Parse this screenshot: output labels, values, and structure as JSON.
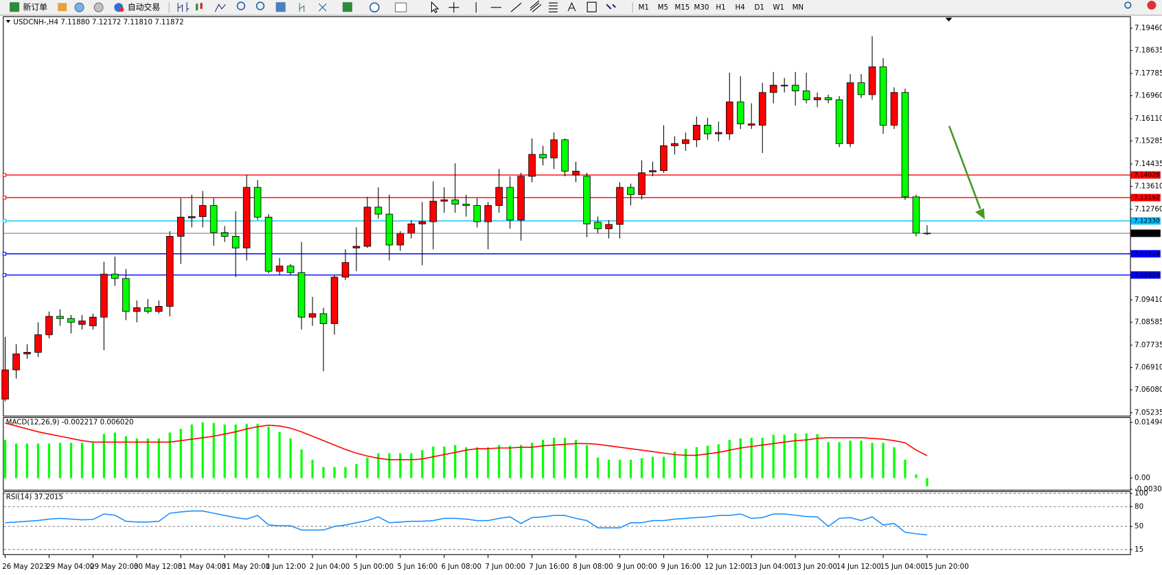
{
  "toolbar": {
    "new_order": "新订单",
    "auto_trading": "自动交易",
    "timeframes": [
      "M1",
      "M5",
      "M15",
      "M30",
      "H1",
      "H4",
      "D1",
      "W1",
      "MN"
    ]
  },
  "chart_data": [
    {
      "type": "candlestick",
      "title": "USDCNH-,H4 7.11880 7.12172 7.11810 7.11872",
      "categories": [
        "26 May 2023",
        null,
        null,
        null,
        "29 May 04:00",
        null,
        null,
        null,
        "29 May 20:00",
        null,
        null,
        null,
        "30 May 12:00",
        null,
        null,
        null,
        "31 May 04:00",
        null,
        null,
        null,
        "31 May 20:00",
        null,
        null,
        null,
        "1 Jun 12:00",
        null,
        null,
        null,
        "2 Jun 04:00",
        null,
        null,
        null,
        "5 Jun 00:00",
        null,
        null,
        null,
        "5 Jun 16:00",
        null,
        null,
        null,
        "6 Jun 08:00",
        null,
        null,
        null,
        "7 Jun 00:00",
        null,
        null,
        null,
        "7 Jun 16:00",
        null,
        null,
        null,
        "8 Jun 08:00",
        null,
        null,
        null,
        "9 Jun 00:00",
        null,
        null,
        null,
        "9 Jun 16:00",
        null,
        null,
        null,
        "12 Jun 12:00",
        null,
        null,
        null,
        "13 Jun 04:00",
        null,
        null,
        null,
        "13 Jun 20:00",
        null,
        null,
        null,
        "14 Jun 12:00",
        null,
        null,
        null,
        "15 Jun 04:00",
        null,
        null,
        null,
        "15 Jun 20:00"
      ],
      "open": [
        7.0574,
        7.0682,
        7.0741,
        7.0747,
        7.0812,
        7.088,
        7.0872,
        7.085,
        7.0845,
        7.0877,
        7.1036,
        7.102,
        7.0898,
        7.0912,
        7.0898,
        7.0917,
        7.1176,
        7.1244,
        7.1249,
        7.129,
        7.119,
        7.1176,
        7.1133,
        7.1357,
        7.1247,
        7.1047,
        7.1066,
        7.1042,
        7.0877,
        7.089,
        7.0853,
        7.1025,
        7.1133,
        7.1139,
        7.1284,
        7.1258,
        7.1144,
        7.1187,
        7.1222,
        7.123,
        7.1306,
        7.1311,
        7.1295,
        7.129,
        7.123,
        7.129,
        7.1357,
        7.1236,
        7.1398,
        7.1479,
        7.1466,
        7.1533,
        7.1403,
        7.1398,
        7.1228,
        7.1204,
        7.122,
        7.1357,
        7.133,
        7.1414,
        7.1419,
        7.1511,
        7.1519,
        7.1533,
        7.1587,
        7.1555,
        7.1555,
        7.1673,
        7.1587,
        7.1587,
        7.1708,
        7.1733,
        7.1735,
        7.1714,
        7.1681,
        7.1689,
        7.1681,
        7.1519,
        7.1744,
        7.17,
        7.1803,
        7.1587,
        7.1708,
        7.1322,
        7.1188
      ],
      "high": [
        7.0804,
        7.0777,
        7.0777,
        7.0858,
        7.0898,
        7.0906,
        7.0885,
        7.0885,
        7.089,
        7.1082,
        7.1101,
        7.1055,
        7.0939,
        7.0944,
        7.0939,
        7.1195,
        7.1317,
        7.133,
        7.1344,
        7.1317,
        7.1214,
        7.1268,
        7.1403,
        7.1384,
        7.1258,
        7.1096,
        7.1074,
        7.1155,
        7.0952,
        7.0912,
        7.1033,
        7.1128,
        7.1209,
        7.1322,
        7.1357,
        7.133,
        7.1195,
        7.1236,
        7.1303,
        7.1379,
        7.1357,
        7.1446,
        7.133,
        7.1317,
        7.1303,
        7.1425,
        7.1398,
        7.1411,
        7.1538,
        7.1511,
        7.156,
        7.1538,
        7.1452,
        7.1411,
        7.1249,
        7.1236,
        7.1376,
        7.1371,
        7.1457,
        7.1452,
        7.1587,
        7.1546,
        7.156,
        7.1619,
        7.1614,
        7.16,
        7.1781,
        7.1768,
        7.1668,
        7.1744,
        7.1784,
        7.1762,
        7.1784,
        7.1781,
        7.1708,
        7.17,
        7.1695,
        7.1776,
        7.1776,
        7.1916,
        7.1835,
        7.1727,
        7.1722,
        7.133,
        7.12172
      ],
      "low": [
        7.0566,
        7.065,
        7.0723,
        7.073,
        7.0799,
        7.0845,
        7.0817,
        7.0831,
        7.0831,
        7.0755,
        7.0993,
        7.0866,
        7.0858,
        7.089,
        7.089,
        7.088,
        7.1074,
        7.1209,
        7.1209,
        7.1141,
        7.1155,
        7.1025,
        7.1087,
        7.1236,
        7.1039,
        7.1033,
        7.1033,
        7.0831,
        7.0845,
        7.0677,
        7.0812,
        7.1014,
        7.1047,
        7.1133,
        7.1241,
        7.1087,
        7.1122,
        7.1168,
        7.1069,
        7.1128,
        7.1263,
        7.1263,
        7.1249,
        7.1209,
        7.1128,
        7.1263,
        7.1204,
        7.116,
        7.1376,
        7.1438,
        7.1425,
        7.1398,
        7.1376,
        7.1173,
        7.1187,
        7.1168,
        7.1168,
        7.129,
        7.1312,
        7.1398,
        7.1411,
        7.1479,
        7.1492,
        7.1506,
        7.1533,
        7.1527,
        7.1533,
        7.1573,
        7.1573,
        7.1484,
        7.1668,
        7.1708,
        7.166,
        7.1668,
        7.1654,
        7.1668,
        7.1506,
        7.1506,
        7.1687,
        7.1681,
        7.1555,
        7.1573,
        7.1311,
        7.1176,
        7.1181
      ],
      "close": [
        7.0682,
        7.0741,
        7.0747,
        7.0812,
        7.088,
        7.0872,
        7.0858,
        7.0863,
        7.0877,
        7.1036,
        7.102,
        7.0898,
        7.0912,
        7.0898,
        7.0917,
        7.1176,
        7.1247,
        7.1249,
        7.129,
        7.119,
        7.1176,
        7.1133,
        7.1357,
        7.1247,
        7.1047,
        7.1066,
        7.1042,
        7.0877,
        7.089,
        7.0853,
        7.1025,
        7.1079,
        7.1139,
        7.1284,
        7.1258,
        7.1144,
        7.1187,
        7.1222,
        7.123,
        7.1306,
        7.1311,
        7.1295,
        7.129,
        7.123,
        7.129,
        7.1357,
        7.1236,
        7.1398,
        7.1479,
        7.1466,
        7.1533,
        7.1417,
        7.1417,
        7.1222,
        7.1204,
        7.122,
        7.1357,
        7.133,
        7.1411,
        7.1419,
        7.1511,
        7.1519,
        7.1533,
        7.1587,
        7.1555,
        7.156,
        7.1673,
        7.1592,
        7.1592,
        7.1708,
        7.1735,
        7.1735,
        7.1714,
        7.1681,
        7.1689,
        7.1681,
        7.1519,
        7.1744,
        7.17,
        7.1803,
        7.1587,
        7.1708,
        7.1322,
        7.1188,
        7.11872
      ],
      "up_color": "#ff0000",
      "down_color": "#00ff00",
      "ylim": [
        7.05126,
        7.1987
      ],
      "yticks": [
        {
          "value": 7.1946,
          "label": "7.19460"
        },
        7.18635,
        7.17785,
        {
          "value": 7.1696,
          "label": "7.16960"
        },
        {
          "value": 7.1611,
          "label": "7.16110"
        },
        7.15285,
        7.14435,
        {
          "value": 7.1361,
          "label": "7.13610"
        },
        {
          "value": 7.1276,
          "label": "7.12760"
        },
        {
          "value": 7.0941,
          "label": "7.09410"
        },
        7.08585,
        7.07735,
        {
          "value": 7.0691,
          "label": "7.06910"
        },
        {
          "value": 7.0608,
          "label": "7.06080"
        },
        7.05235
      ],
      "levels": [
        {
          "value": 7.14028,
          "color": "#ff0000"
        },
        {
          "value": 7.13192,
          "color": "#ff0000"
        },
        {
          "value": 7.1233,
          "label": "7.12330",
          "color": "#00bfff"
        },
        {
          "value": 7.11114,
          "color": "#0000ff"
        },
        {
          "value": 7.10329,
          "color": "#0000ff"
        }
      ],
      "last_price_line": true
    },
    {
      "type": "macd",
      "title": "MACD(12,26,9) -0.002217 0.006020",
      "histogram": {
        "color": "#00ff00",
        "values": [
          0.01022,
          0.00924,
          0.00924,
          0.00924,
          0.00924,
          0.00944,
          0.00944,
          0.00944,
          0.00944,
          0.0118,
          0.01219,
          0.01121,
          0.01062,
          0.01062,
          0.01062,
          0.01219,
          0.01317,
          0.01435,
          0.01494,
          0.01475,
          0.01435,
          0.01435,
          0.01455,
          0.01455,
          0.01376,
          0.01239,
          0.01062,
          0.00767,
          0.00492,
          0.00295,
          0.00295,
          0.00295,
          0.00374,
          0.00551,
          0.00668,
          0.00668,
          0.00668,
          0.00668,
          0.00747,
          0.00845,
          0.00845,
          0.00885,
          0.00826,
          0.00826,
          0.00826,
          0.00885,
          0.00865,
          0.00885,
          0.00944,
          0.01022,
          0.01081,
          0.01081,
          0.01022,
          0.00885,
          0.00551,
          0.00492,
          0.00492,
          0.00492,
          0.00531,
          0.0057,
          0.0057,
          0.00708,
          0.00786,
          0.00826,
          0.00865,
          0.00904,
          0.01022,
          0.01062,
          0.01081,
          0.01081,
          0.0116,
          0.0116,
          0.01199,
          0.01199,
          0.0118,
          0.00963,
          0.00963,
          0.01003,
          0.01003,
          0.00944,
          0.00944,
          0.00826,
          0.00492,
          0.00098,
          -0.002217
        ]
      },
      "signal": {
        "color": "#ff0000",
        "values": [
          0.01475,
          0.01396,
          0.01317,
          0.01239,
          0.0118,
          0.01121,
          0.01062,
          0.01003,
          0.00963,
          0.00963,
          0.00963,
          0.00963,
          0.00963,
          0.00963,
          0.00963,
          0.00963,
          0.01003,
          0.01042,
          0.01081,
          0.01121,
          0.0118,
          0.01239,
          0.01317,
          0.01376,
          0.01416,
          0.01396,
          0.01337,
          0.01239,
          0.01121,
          0.01003,
          0.00885,
          0.00767,
          0.00668,
          0.0059,
          0.00531,
          0.00492,
          0.00492,
          0.00492,
          0.00511,
          0.0057,
          0.00629,
          0.00688,
          0.00747,
          0.00786,
          0.00786,
          0.00806,
          0.00806,
          0.00826,
          0.00826,
          0.00865,
          0.00885,
          0.00904,
          0.00924,
          0.00924,
          0.00904,
          0.00865,
          0.00826,
          0.00786,
          0.00747,
          0.00708,
          0.00668,
          0.00629,
          0.00609,
          0.00609,
          0.00649,
          0.00688,
          0.00747,
          0.00806,
          0.00845,
          0.00885,
          0.00924,
          0.00963,
          0.01003,
          0.01022,
          0.01062,
          0.01081,
          0.01081,
          0.01081,
          0.01081,
          0.01062,
          0.01042,
          0.01003,
          0.00944,
          0.0075,
          0.00602
        ]
      },
      "ylim": [
        -0.00315,
        0.01612
      ],
      "yticks": [
        0.014942,
        {
          "value": 0,
          "label": "0.00"
        },
        -0.003034
      ]
    },
    {
      "type": "line",
      "title": "RSI(14) 37.2015",
      "color": "#1e90ff",
      "values": [
        55.6,
        56.7,
        57.8,
        59,
        61.1,
        62.2,
        61.1,
        60,
        60.5,
        68.9,
        67,
        57.8,
        56.7,
        56.7,
        57.8,
        70,
        72,
        73.4,
        73.4,
        70,
        66.7,
        63.4,
        61.1,
        66.7,
        52.2,
        51.1,
        51.1,
        44.5,
        44.5,
        44.5,
        50,
        52.2,
        55.6,
        58.9,
        64.5,
        55.6,
        56.7,
        57.8,
        57.8,
        58.9,
        62.2,
        62.2,
        61.1,
        58.9,
        58.9,
        62.2,
        64.5,
        54.5,
        63.4,
        64.5,
        66.7,
        66.7,
        62.2,
        58.9,
        47.8,
        47.8,
        47.8,
        55.6,
        55.6,
        58.9,
        58.9,
        61.1,
        62.2,
        63.4,
        64.5,
        66.7,
        66.7,
        68.9,
        62.2,
        63.4,
        68.9,
        68.9,
        67,
        65,
        64.5,
        50,
        62.2,
        63.4,
        58.9,
        64.5,
        52.2,
        54.5,
        41.1,
        38.9,
        37.2015
      ],
      "ylim": [
        7.8,
        102.2
      ],
      "yticks": [
        100,
        80,
        50,
        15
      ],
      "grid": "dashed"
    }
  ]
}
